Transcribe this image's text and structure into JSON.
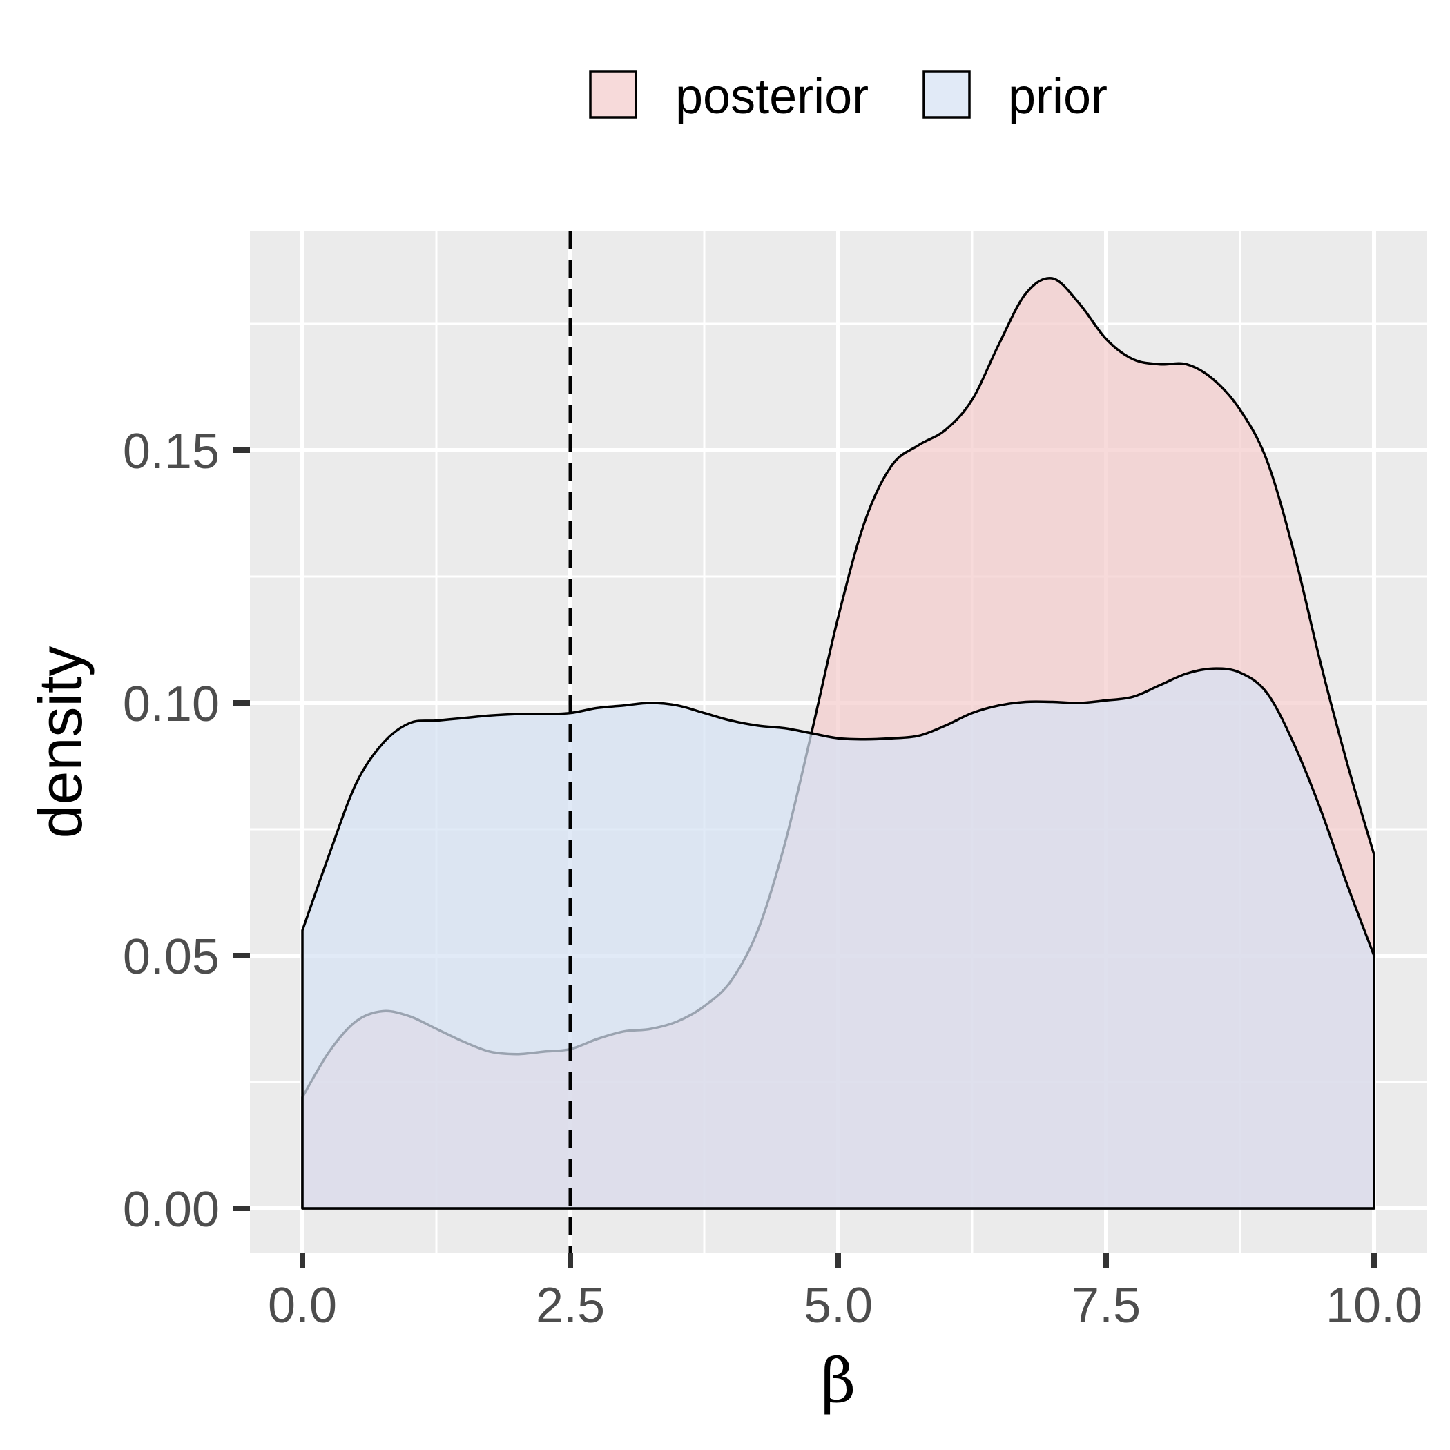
{
  "chart_data": {
    "type": "area",
    "title": "",
    "xlabel": "β",
    "ylabel": "density",
    "xlim": [
      -0.5,
      10.5
    ],
    "ylim": [
      -0.009,
      0.193
    ],
    "x_ticks": [
      {
        "value": 0,
        "label": "0.0"
      },
      {
        "value": 2.5,
        "label": "2.5"
      },
      {
        "value": 5,
        "label": "5.0"
      },
      {
        "value": 7.5,
        "label": "7.5"
      },
      {
        "value": 10,
        "label": "10.0"
      }
    ],
    "y_ticks": [
      {
        "value": 0,
        "label": "0.00"
      },
      {
        "value": 0.05,
        "label": "0.05"
      },
      {
        "value": 0.1,
        "label": "0.10"
      },
      {
        "value": 0.15,
        "label": "0.15"
      }
    ],
    "minor_x": [
      1.25,
      3.75,
      6.25,
      8.75
    ],
    "minor_y": [
      0.025,
      0.075,
      0.125,
      0.175
    ],
    "grid": true,
    "legend_position": "top",
    "vline": {
      "x": 2.5,
      "style": "dashed"
    },
    "series": [
      {
        "name": "posterior",
        "fill": "#f4cccc",
        "x": [
          0,
          0.25,
          0.5,
          0.75,
          1,
          1.25,
          1.5,
          1.75,
          2,
          2.25,
          2.5,
          2.75,
          3,
          3.25,
          3.5,
          3.75,
          4,
          4.25,
          4.5,
          4.75,
          5,
          5.25,
          5.5,
          5.75,
          6,
          6.25,
          6.5,
          6.75,
          7,
          7.25,
          7.5,
          7.75,
          8,
          8.25,
          8.5,
          8.75,
          9,
          9.25,
          9.5,
          9.75,
          10
        ],
        "y": [
          0.022,
          0.031,
          0.037,
          0.039,
          0.038,
          0.0355,
          0.033,
          0.031,
          0.0305,
          0.031,
          0.0315,
          0.0335,
          0.035,
          0.0355,
          0.037,
          0.04,
          0.045,
          0.055,
          0.072,
          0.094,
          0.117,
          0.136,
          0.147,
          0.151,
          0.154,
          0.16,
          0.171,
          0.181,
          0.184,
          0.179,
          0.172,
          0.168,
          0.167,
          0.167,
          0.164,
          0.158,
          0.148,
          0.13,
          0.108,
          0.088,
          0.07
        ]
      },
      {
        "name": "prior",
        "fill": "#d6e2f4",
        "x": [
          0,
          0.25,
          0.5,
          0.75,
          1,
          1.25,
          1.5,
          1.75,
          2,
          2.25,
          2.5,
          2.75,
          3,
          3.25,
          3.5,
          3.75,
          4,
          4.25,
          4.5,
          4.75,
          5,
          5.25,
          5.5,
          5.75,
          6,
          6.25,
          6.5,
          6.75,
          7,
          7.25,
          7.5,
          7.75,
          8,
          8.25,
          8.5,
          8.75,
          9,
          9.25,
          9.5,
          9.75,
          10
        ],
        "y": [
          0.055,
          0.07,
          0.084,
          0.092,
          0.096,
          0.0965,
          0.097,
          0.0975,
          0.0978,
          0.0978,
          0.098,
          0.099,
          0.0995,
          0.1,
          0.0995,
          0.098,
          0.0965,
          0.0955,
          0.095,
          0.094,
          0.093,
          0.0928,
          0.093,
          0.0935,
          0.0955,
          0.098,
          0.0995,
          0.1002,
          0.1002,
          0.1,
          0.1005,
          0.1012,
          0.1035,
          0.1058,
          0.1068,
          0.106,
          0.102,
          0.092,
          0.079,
          0.064,
          0.05
        ]
      }
    ]
  }
}
